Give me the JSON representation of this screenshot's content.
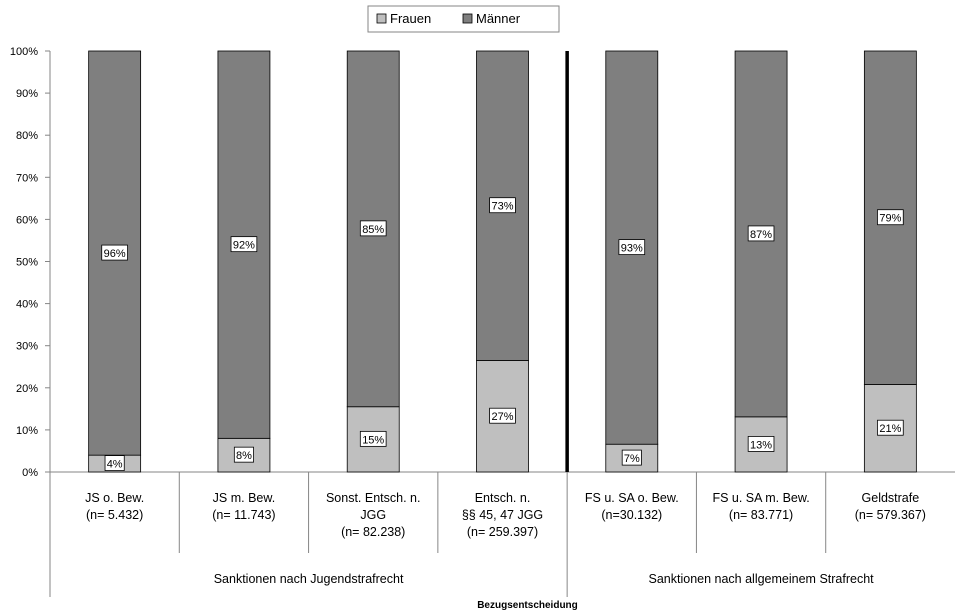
{
  "chart_data": {
    "type": "bar",
    "stacked": true,
    "percent_stacked": true,
    "title": "",
    "xlabel": "Bezugsentscheidung",
    "ylabel": "",
    "ylim": [
      0,
      100
    ],
    "yticks": [
      "0%",
      "10%",
      "20%",
      "30%",
      "40%",
      "50%",
      "60%",
      "70%",
      "80%",
      "90%",
      "100%"
    ],
    "grid": false,
    "legend_position": "top-center",
    "categories": [
      [
        "JS o. Bew.",
        "(n= 5.432)"
      ],
      [
        "JS m. Bew.",
        "(n= 11.743)"
      ],
      [
        "Sonst. Entsch. n.",
        "JGG",
        "(n= 82.238)"
      ],
      [
        "Entsch. n.",
        "§§ 45, 47 JGG",
        "(n= 259.397)"
      ],
      [
        "FS u. SA o. Bew.",
        "(n=30.132)"
      ],
      [
        "FS u. SA m. Bew.",
        "(n= 83.771)"
      ],
      [
        "Geldstrafe",
        "(n= 579.367)"
      ]
    ],
    "groups": [
      {
        "label": "Sanktionen nach Jugendstrafrecht",
        "span": [
          0,
          3
        ]
      },
      {
        "label": "Sanktionen nach allgemeinem Strafrecht",
        "span": [
          4,
          6
        ]
      }
    ],
    "series": [
      {
        "name": "Frauen",
        "color": "#bfbfbf",
        "values": [
          4,
          8,
          15.5,
          26.5,
          6.6,
          13.1,
          20.8
        ],
        "labels": [
          "4%",
          "8%",
          "15%",
          "27%",
          "7%",
          "13%",
          "21%"
        ]
      },
      {
        "name": "Männer",
        "color": "#7f7f7f",
        "values": [
          96,
          92,
          84.5,
          73.5,
          93.4,
          86.9,
          79.2
        ],
        "labels": [
          "96%",
          "92%",
          "85%",
          "73%",
          "93%",
          "87%",
          "79%"
        ]
      }
    ],
    "divider_after_category": 3
  }
}
